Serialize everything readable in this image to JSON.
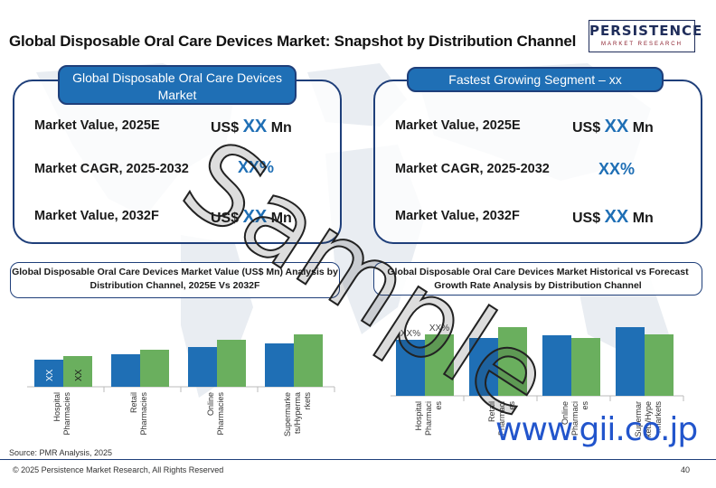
{
  "title": "Global Disposable Oral Care Devices Market: Snapshot by Distribution Channel",
  "logo": {
    "main": "PERSISTENCE",
    "sub": "MARKET RESEARCH"
  },
  "left_panel": {
    "heading": "Global Disposable Oral Care Devices Market",
    "rows": [
      {
        "label": "Market Value, 2025E",
        "prefix": "US$ ",
        "value": "XX",
        "suffix": " Mn"
      },
      {
        "label": "Market CAGR, 2025-2032",
        "prefix": "",
        "value": "XX%",
        "suffix": ""
      },
      {
        "label": "Market Value, 2032F",
        "prefix": "US$ ",
        "value": "XX",
        "suffix": " Mn"
      }
    ]
  },
  "right_panel": {
    "heading": "Fastest Growing Segment – xx",
    "rows": [
      {
        "label": "Market Value, 2025E",
        "prefix": "US$ ",
        "value": "XX",
        "suffix": " Mn"
      },
      {
        "label": "Market CAGR, 2025-2032",
        "prefix": "",
        "value": "XX%",
        "suffix": ""
      },
      {
        "label": "Market Value, 2032F",
        "prefix": "US$ ",
        "value": "XX",
        "suffix": " Mn"
      }
    ]
  },
  "chart_data": [
    {
      "type": "bar",
      "title": "Global Disposable Oral Care Devices Market Value (US$ Mn) Analysis by Distribution Channel, 2025E Vs 2032F",
      "categories": [
        "Hospital Pharmacies",
        "Retail Pharmacies",
        "Online Pharmacies",
        "Supermarkets/Hypermarkets"
      ],
      "category_labels": [
        [
          "Hospital",
          "Pharmacies"
        ],
        [
          "Retail",
          "Pharmacies"
        ],
        [
          "Online",
          "Pharmacies"
        ],
        [
          "Supermarke",
          "ts/Hyperma",
          "rkets"
        ]
      ],
      "series": [
        {
          "values": [
            30,
            36,
            44,
            48
          ],
          "color": "#1f6fb5"
        },
        {
          "values": [
            34,
            41,
            52,
            58
          ],
          "color": "#6aaf5e"
        }
      ],
      "data_labels": [
        "XX",
        "XX"
      ],
      "ylim": [
        0,
        100
      ]
    },
    {
      "type": "bar",
      "title": "Global Disposable Oral Care Devices Market Historical vs Forecast Growth Rate Analysis by Distribution Channel",
      "categories": [
        "Hospital Pharmacies",
        "Retail Pharmacies",
        "Online Pharmacies",
        "Supermarkets/Hypermarkets"
      ],
      "category_labels": [
        [
          "Hospital",
          "Pharmaci",
          "es"
        ],
        [
          "Retail",
          "Pharmaci",
          "es"
        ],
        [
          "Online",
          "Pharmaci",
          "es"
        ],
        [
          "Supermar",
          "kets/Hype",
          "rmarkets"
        ]
      ],
      "series": [
        {
          "values": [
            62,
            64,
            67,
            76
          ],
          "color": "#1f6fb5"
        },
        {
          "values": [
            68,
            76,
            64,
            68
          ],
          "color": "#6aaf5e"
        }
      ],
      "data_labels": [
        "XX%",
        "XX%"
      ],
      "ylim": [
        0,
        100
      ]
    }
  ],
  "source": "Source: PMR Analysis, 2025",
  "footer": "© 2025 Persistence Market Research, All Rights Reserved",
  "page_number": "40",
  "watermark": "Sample",
  "overlay_url": "www.gii.co.jp"
}
